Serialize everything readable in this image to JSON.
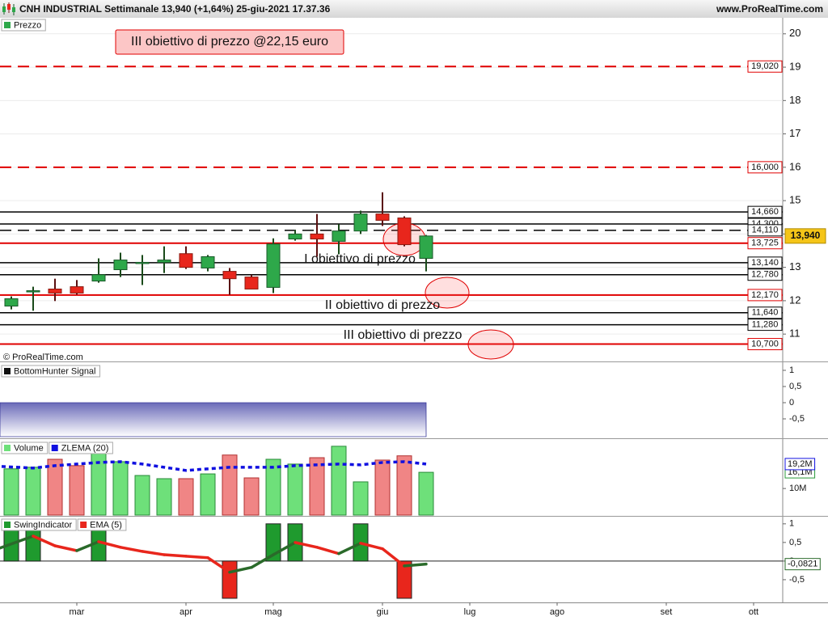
{
  "header": {
    "title": "CNH INDUSTRIAL Settimanale 13,940 (+1,64%) 25-giu-2021 17.37.36",
    "site": "www.ProRealTime.com",
    "credit": "© ProRealTime.com"
  },
  "chart_data": [
    {
      "type": "candlestick",
      "legend": "Prezzo",
      "categories": [
        null,
        null,
        null,
        "mar",
        null,
        null,
        null,
        null,
        "apr",
        null,
        null,
        null,
        "mag",
        null,
        null,
        null,
        null,
        "giu",
        null,
        null,
        null,
        "lug",
        null,
        null,
        null,
        "ago",
        null,
        null,
        null,
        null,
        "set",
        null,
        null,
        null,
        "ott",
        null
      ],
      "open": [
        11.84,
        12.28,
        12.35,
        12.42,
        12.59,
        12.93,
        13.13,
        13.15,
        13.41,
        12.98,
        12.88,
        12.71,
        12.4,
        13.85,
        14.0,
        13.78,
        14.09,
        14.6,
        14.48,
        13.27,
        null,
        null,
        null,
        null,
        null,
        null,
        null,
        null,
        null,
        null,
        null,
        null,
        null,
        null,
        null,
        null
      ],
      "high": [
        12.13,
        12.42,
        12.66,
        12.62,
        13.27,
        13.44,
        13.37,
        13.63,
        13.63,
        13.37,
        12.98,
        12.78,
        13.87,
        14.12,
        14.6,
        14.29,
        14.7,
        15.25,
        14.53,
        13.97,
        null,
        null,
        null,
        null,
        null,
        null,
        null,
        null,
        null,
        null,
        null,
        null,
        null,
        null,
        null,
        null
      ],
      "low": [
        11.74,
        11.7,
        11.99,
        12.18,
        12.54,
        12.71,
        12.47,
        12.83,
        12.95,
        12.88,
        12.18,
        12.35,
        12.23,
        13.8,
        13.32,
        13.39,
        14.0,
        14.24,
        13.63,
        12.88,
        null,
        null,
        null,
        null,
        null,
        null,
        null,
        null,
        null,
        null,
        null,
        null,
        null,
        null,
        null,
        null
      ],
      "close": [
        12.06,
        12.3,
        12.23,
        12.23,
        12.78,
        13.22,
        13.15,
        13.22,
        13.0,
        13.32,
        12.66,
        12.35,
        13.7,
        14.0,
        13.85,
        14.09,
        14.6,
        14.41,
        13.68,
        13.94,
        null,
        null,
        null,
        null,
        null,
        null,
        null,
        null,
        null,
        null,
        null,
        null,
        null,
        null,
        null,
        null
      ],
      "up_color": "#2ea84a",
      "down_color": "#e8261c",
      "ylim": [
        10.18,
        20.48
      ],
      "yticks": [
        11,
        12,
        13,
        14,
        15,
        16,
        17,
        18,
        19,
        20
      ],
      "grid": true,
      "levels": [
        {
          "value": 19.02,
          "label": "19,020",
          "color": "#e00000",
          "dash": true
        },
        {
          "value": 16.0,
          "label": "16,000",
          "color": "#e00000",
          "dash": true
        },
        {
          "value": 14.66,
          "label": "14,660",
          "color": "#000000",
          "dash": false
        },
        {
          "value": 14.3,
          "label": "14,300",
          "color": "#000000",
          "dash": false
        },
        {
          "value": 14.11,
          "label": "14,110",
          "color": "#000000",
          "dash": true
        },
        {
          "value": 13.725,
          "label": "13,725",
          "color": "#e00000",
          "dash": false
        },
        {
          "value": 13.14,
          "label": "13,140",
          "color": "#000000",
          "dash": false
        },
        {
          "value": 12.78,
          "label": "12,780",
          "color": "#000000",
          "dash": false
        },
        {
          "value": 12.17,
          "label": "12,170",
          "color": "#e00000",
          "dash": false
        },
        {
          "value": 11.64,
          "label": "11,640",
          "color": "#000000",
          "dash": false
        },
        {
          "value": 11.28,
          "label": "11,280",
          "color": "#000000",
          "dash": false
        },
        {
          "value": 10.7,
          "label": "10,700",
          "color": "#e00000",
          "dash": false
        }
      ],
      "price_tag": {
        "value": 13.94,
        "label": "13,940"
      },
      "callout": "III obiettivo di prezzo @22,15 euro",
      "targets": [
        "I obiettivo di prezzo",
        "II obiettivo di prezzo",
        "III obiettivo di prezzo"
      ]
    },
    {
      "type": "area",
      "legend": "BottomHunter Signal",
      "color": "#3a3a9a",
      "values": [
        0,
        0,
        0,
        0,
        0,
        0,
        0,
        0,
        0,
        0,
        0,
        0,
        0,
        0,
        0,
        0,
        0,
        0,
        0,
        0,
        null,
        null,
        null,
        null,
        null,
        null,
        null,
        null,
        null,
        null,
        null,
        null,
        null,
        null,
        null,
        null
      ],
      "ylim": [
        -1.05,
        1.2
      ],
      "yticks": [
        1,
        {
          "value": 0.5,
          "label": "0,5"
        },
        0,
        {
          "value": -0.5,
          "label": "-0,5"
        }
      ]
    },
    {
      "type": "bar",
      "legend": "Volume",
      "up_color": "#6ee07a",
      "down_color": "#f08585",
      "values": [
        17.4,
        18.0,
        21.0,
        18.6,
        23.5,
        20.1,
        14.9,
        13.7,
        13.7,
        15.5,
        22.6,
        14.0,
        21.0,
        19.2,
        21.6,
        25.9,
        12.5,
        20.7,
        22.3,
        16.1,
        null,
        null,
        null,
        null,
        null,
        null,
        null,
        null,
        null,
        null,
        null,
        null,
        null,
        null,
        null,
        null
      ],
      "value_labels": [
        null,
        null,
        null,
        null,
        null,
        null,
        null,
        null,
        null,
        null,
        null,
        null,
        null,
        null,
        null,
        null,
        null,
        null,
        null,
        "16,1M",
        null,
        null,
        null,
        null,
        null,
        null,
        null,
        null,
        null,
        null,
        null,
        null,
        null,
        null,
        null,
        null
      ],
      "series": [
        {
          "name": "ZLEMA (20)",
          "color": "#1010e0",
          "style": "dotted",
          "values": [
            18.3,
            17.7,
            18.6,
            19.2,
            19.8,
            20.1,
            19.2,
            18.0,
            16.8,
            17.4,
            18.0,
            18.0,
            18.0,
            18.6,
            18.9,
            19.2,
            18.9,
            19.8,
            20.1,
            19.2,
            null,
            null,
            null,
            null,
            null,
            null,
            null,
            null,
            null,
            null,
            null,
            null,
            null,
            null,
            null,
            null
          ],
          "value_labels": [
            null,
            null,
            null,
            null,
            null,
            null,
            null,
            null,
            null,
            null,
            null,
            null,
            null,
            null,
            null,
            null,
            null,
            null,
            null,
            "19,2M",
            null,
            null,
            null,
            null,
            null,
            null,
            null,
            null,
            null,
            null,
            null,
            null,
            null,
            null,
            null,
            null
          ]
        }
      ],
      "ylim": [
        0,
        28
      ],
      "yticks": [
        {
          "value": 10,
          "label": "10M"
        }
      ]
    },
    {
      "type": "bar",
      "legend": "SwingIndicator",
      "pos_color": "#1f9a2e",
      "neg_color": "#e8261c",
      "values": [
        1,
        1,
        0,
        0,
        1,
        0,
        0,
        0,
        0,
        0,
        -1,
        0,
        1,
        1,
        0,
        0,
        1,
        0,
        -1,
        0,
        null,
        null,
        null,
        null,
        null,
        null,
        null,
        null,
        null,
        null,
        null,
        null,
        null,
        null,
        null,
        null
      ],
      "series": [
        {
          "name": "EMA (5)",
          "color": "#e8261c",
          "rise_color": "#2a6a2a",
          "style": "solid",
          "values": [
            0.35,
            0.67,
            0.41,
            0.28,
            0.52,
            0.37,
            0.26,
            0.17,
            0.13,
            0.09,
            -0.3,
            -0.17,
            0.17,
            0.5,
            0.37,
            0.2,
            0.48,
            0.33,
            -0.13,
            -0.0821,
            null,
            null,
            null,
            null,
            null,
            null,
            null,
            null,
            null,
            null,
            null,
            null,
            null,
            null,
            null,
            null
          ],
          "value_labels": [
            null,
            null,
            null,
            null,
            null,
            null,
            null,
            null,
            null,
            null,
            null,
            null,
            null,
            null,
            null,
            null,
            null,
            null,
            null,
            "-0,0821",
            null,
            null,
            null,
            null,
            null,
            null,
            null,
            null,
            null,
            null,
            null,
            null,
            null,
            null,
            null,
            null
          ]
        }
      ],
      "ylim": [
        -1.11,
        1.17
      ],
      "yticks": [
        1,
        {
          "value": 0.5,
          "label": "0,5"
        },
        0,
        {
          "value": -0.5,
          "label": "-0,5"
        }
      ]
    }
  ]
}
